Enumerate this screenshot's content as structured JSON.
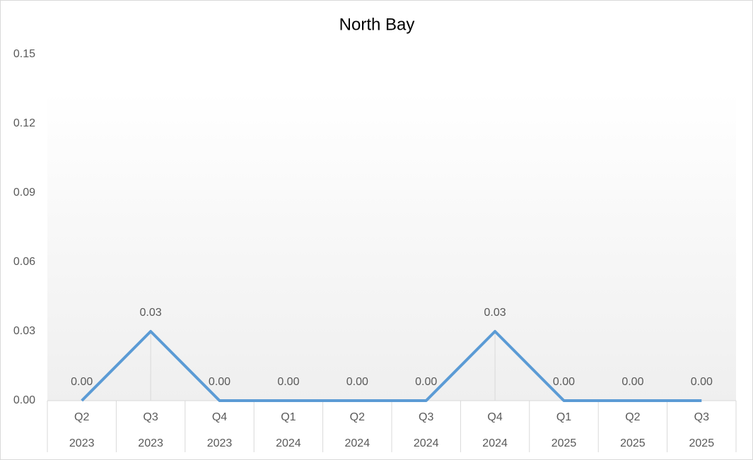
{
  "chart_data": {
    "type": "line",
    "title": "North Bay",
    "categories": [
      "Q2",
      "Q3",
      "Q4",
      "Q1",
      "Q2",
      "Q3",
      "Q4",
      "Q1",
      "Q2",
      "Q3"
    ],
    "category_groups": [
      "2023",
      "2023",
      "2023",
      "2024",
      "2024",
      "2024",
      "2024",
      "2025",
      "2025",
      "2025"
    ],
    "values": [
      0,
      0.03,
      0,
      0,
      0,
      0,
      0.03,
      0,
      0,
      0
    ],
    "value_labels": [
      "0.00",
      "0.03",
      "0.00",
      "0.00",
      "0.00",
      "0.00",
      "0.03",
      "0.00",
      "0.00",
      "0.00"
    ],
    "color": "#5b9bd5",
    "ylim": [
      0,
      0.15
    ],
    "yticks": [
      {
        "value": 0,
        "label": "0.00"
      },
      0.03,
      0.06,
      0.09,
      0.12,
      0.15
    ],
    "drop_lines": true,
    "grid": false
  }
}
